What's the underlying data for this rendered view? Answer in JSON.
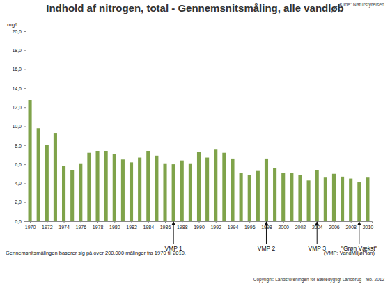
{
  "chart_data": {
    "type": "bar",
    "title": "Indhold af nitrogen, total - Gennemsnitsmåling, alle vandløb",
    "source": "Kilde: Naturstyrelsen",
    "y_label": "mg/l",
    "footnote": "Gennemsnitsmålingen baserer sig på over 200.000 målinger fra 1970 til 2010.",
    "abbreviation_note": "(VMP: VandMiljøPlan)",
    "copyright": "Copyright: Landsforeningen for Bæredygtigt Landbrug - feb. 2012",
    "x": [
      1970,
      1971,
      1972,
      1973,
      1974,
      1975,
      1976,
      1977,
      1978,
      1979,
      1980,
      1981,
      1982,
      1983,
      1984,
      1985,
      1986,
      1987,
      1988,
      1989,
      1990,
      1991,
      1992,
      1993,
      1994,
      1995,
      1996,
      1997,
      1998,
      1999,
      2000,
      2001,
      2002,
      2003,
      2004,
      2005,
      2006,
      2007,
      2008,
      2009,
      2010
    ],
    "values": [
      12.8,
      9.8,
      8.0,
      9.3,
      5.8,
      5.4,
      6.1,
      7.2,
      7.4,
      7.4,
      7.1,
      6.5,
      6.2,
      6.7,
      7.4,
      6.9,
      6.1,
      6.0,
      6.4,
      6.1,
      7.3,
      6.7,
      7.6,
      7.2,
      6.6,
      5.1,
      4.9,
      5.3,
      6.6,
      5.6,
      5.1,
      5.1,
      4.9,
      4.3,
      5.4,
      4.6,
      5.0,
      4.7,
      4.5,
      4.1,
      4.6
    ],
    "color": "#7fa34a",
    "xlim": [
      1969.5,
      2010.5
    ],
    "xticks": [
      1970,
      1972,
      1974,
      1976,
      1978,
      1980,
      1982,
      1984,
      1986,
      1988,
      1990,
      1992,
      1994,
      1996,
      1998,
      2000,
      2002,
      2004,
      2006,
      2008,
      2010
    ],
    "ylim": [
      0,
      20
    ],
    "yticks": [
      {
        "value": 0,
        "label": "0,0"
      },
      {
        "value": 2,
        "label": "2,0"
      },
      {
        "value": 4,
        "label": "4,0"
      },
      {
        "value": 6,
        "label": "6,0"
      },
      {
        "value": 8,
        "label": "8,0"
      },
      {
        "value": 10,
        "label": "10,0"
      },
      {
        "value": 12,
        "label": "12,0"
      },
      {
        "value": 14,
        "label": "14,0"
      },
      {
        "value": 16,
        "label": "16,0"
      },
      {
        "value": 18,
        "label": "18,0"
      },
      {
        "value": 20,
        "label": "20,0"
      }
    ],
    "grid": false,
    "annotations": [
      {
        "text": "VMP 1",
        "x": 1987
      },
      {
        "text": "VMP 2",
        "x": 1998
      },
      {
        "text": "VMP 3",
        "x": 2004
      },
      {
        "text": "\"Grøn Vækst\"",
        "x": 2009
      }
    ]
  }
}
